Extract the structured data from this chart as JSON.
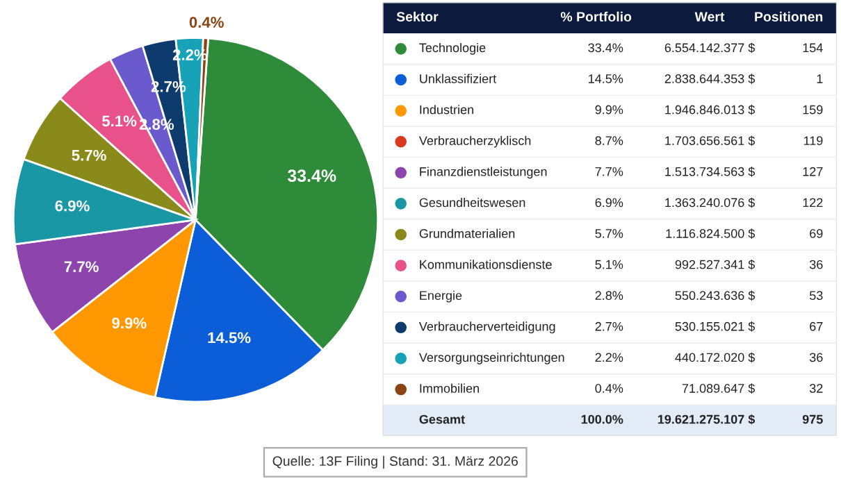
{
  "chart_data": [
    {
      "type": "pie",
      "values": [
        33.4,
        14.5,
        9.9,
        7.7,
        6.9,
        5.7,
        5.1,
        2.8,
        2.7,
        2.2,
        0.4
      ],
      "value_labels": [
        "33.4%",
        "14.5%",
        "9.9%",
        "7.7%",
        "6.9%",
        "5.7%",
        "5.1%",
        "2.8%",
        "2.7%",
        "2.2%",
        "0.4%"
      ],
      "colors": [
        "#2e8b3a",
        "#0b5ed7",
        "#ff9800",
        "#8e44ad",
        "#1a97a5",
        "#8a8a1a",
        "#e8518a",
        "#6a5acd",
        "#0d3b6e",
        "#17a2b8",
        "#8b4513"
      ],
      "annotations": [
        "Quelle: 13F Filing | Stand: 31. März 2026"
      ]
    },
    {
      "type": "other",
      "legend_title": "Sektor",
      "categories": [
        "Technologie",
        "Unklassifiziert",
        "Industrien",
        "Verbraucherzyklisch",
        "Finanzdienstleistungen",
        "Gesundheitswesen",
        "Grundmaterialien",
        "Kommunikationsdienste",
        "Energie",
        "Verbraucherverteidigung",
        "Versorgungseinrichtungen",
        "Immobilien",
        "Gesamt"
      ],
      "colors": [
        "#2e8b3a",
        "#0b5ed7",
        "#ff9800",
        "#d93a1f",
        "#8e44ad",
        "#1a97a5",
        "#8a8a1a",
        "#e8518a",
        "#6a5acd",
        "#0d3b6e",
        "#17a2b8",
        "#8b4513",
        null
      ],
      "series": [
        {
          "name": "% Portfolio",
          "values": [
            33.4,
            14.5,
            9.9,
            8.7,
            7.7,
            6.9,
            5.7,
            5.1,
            2.8,
            2.7,
            2.2,
            0.4,
            100.0
          ],
          "value_labels": [
            "33.4%",
            "14.5%",
            "9.9%",
            "8.7%",
            "7.7%",
            "6.9%",
            "5.7%",
            "5.1%",
            "2.8%",
            "2.7%",
            "2.2%",
            "0.4%",
            "100.0%"
          ]
        },
        {
          "name": "Wert",
          "values": [
            6554142377,
            2838644353,
            1946846013,
            1703656561,
            1513734563,
            1363240076,
            1116824500,
            992527341,
            550243636,
            530155021,
            440172020,
            71089647,
            19621275107
          ],
          "value_labels": [
            "6.554.142.377 $",
            "2.838.644.353 $",
            "1.946.846.013 $",
            "1.703.656.561 $",
            "1.513.734.563 $",
            "1.363.240.076 $",
            "1.116.824.500 $",
            "992.527.341 $",
            "550.243.636 $",
            "530.155.021 $",
            "440.172.020 $",
            "71.089.647 $",
            "19.621.275.107 $"
          ]
        },
        {
          "name": "Positionen",
          "values": [
            154,
            1,
            159,
            119,
            127,
            122,
            69,
            36,
            53,
            67,
            36,
            32,
            975
          ],
          "value_labels": [
            "154",
            "1",
            "159",
            "119",
            "127",
            "122",
            "69",
            "36",
            "53",
            "67",
            "36",
            "32",
            "975"
          ]
        }
      ]
    }
  ]
}
